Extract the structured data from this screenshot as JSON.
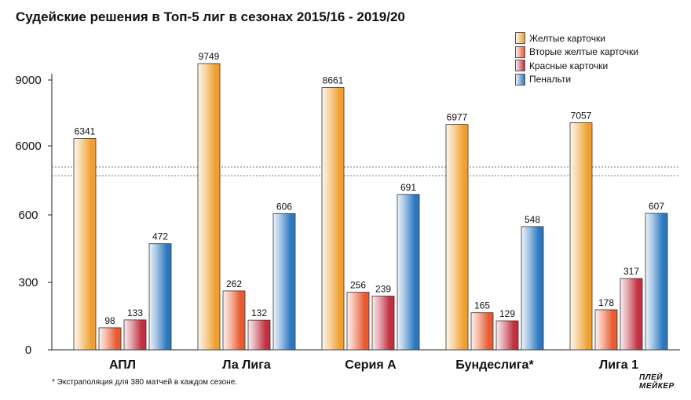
{
  "chart_data": {
    "type": "bar",
    "title": "Судейские решения в Топ-5 лиг в сезонах 2015/16 - 2019/20",
    "categories": [
      "АПЛ",
      "Ла Лига",
      "Серия А",
      "Бундеслига*",
      "Лига 1"
    ],
    "series": [
      {
        "name": "Желтые карточки",
        "values": [
          6341,
          9749,
          8661,
          6977,
          7057
        ],
        "color": "#f0a030",
        "axis": "upper"
      },
      {
        "name": "Вторые желтые карточки",
        "values": [
          98,
          262,
          256,
          165,
          178
        ],
        "color": "#e85a30",
        "axis": "lower"
      },
      {
        "name": "Красные карточки",
        "values": [
          133,
          132,
          239,
          129,
          317
        ],
        "color": "#c0303f",
        "axis": "lower"
      },
      {
        "name": "Пенальти",
        "values": [
          472,
          606,
          691,
          548,
          607
        ],
        "color": "#2a78c0",
        "axis": "lower"
      }
    ],
    "y_ticks": [
      {
        "label": "0",
        "value": 0,
        "axis": "lower"
      },
      {
        "label": "300",
        "value": 300,
        "axis": "lower"
      },
      {
        "label": "600",
        "value": 600,
        "axis": "lower"
      },
      {
        "label": "6000",
        "value": 6000,
        "axis": "upper"
      },
      {
        "label": "9000",
        "value": 9000,
        "axis": "upper"
      }
    ],
    "lower_axis_range": [
      0,
      900
    ],
    "upper_axis_range": [
      3000,
      9900
    ],
    "axis_break": true,
    "grid": false,
    "legend_position": "top-right",
    "footnote": "* Экстраполяция для 380 матчей в каждом сезоне."
  },
  "brand": {
    "line1": "ПЛЕЙ",
    "line2": "МЕЙКЕР"
  }
}
